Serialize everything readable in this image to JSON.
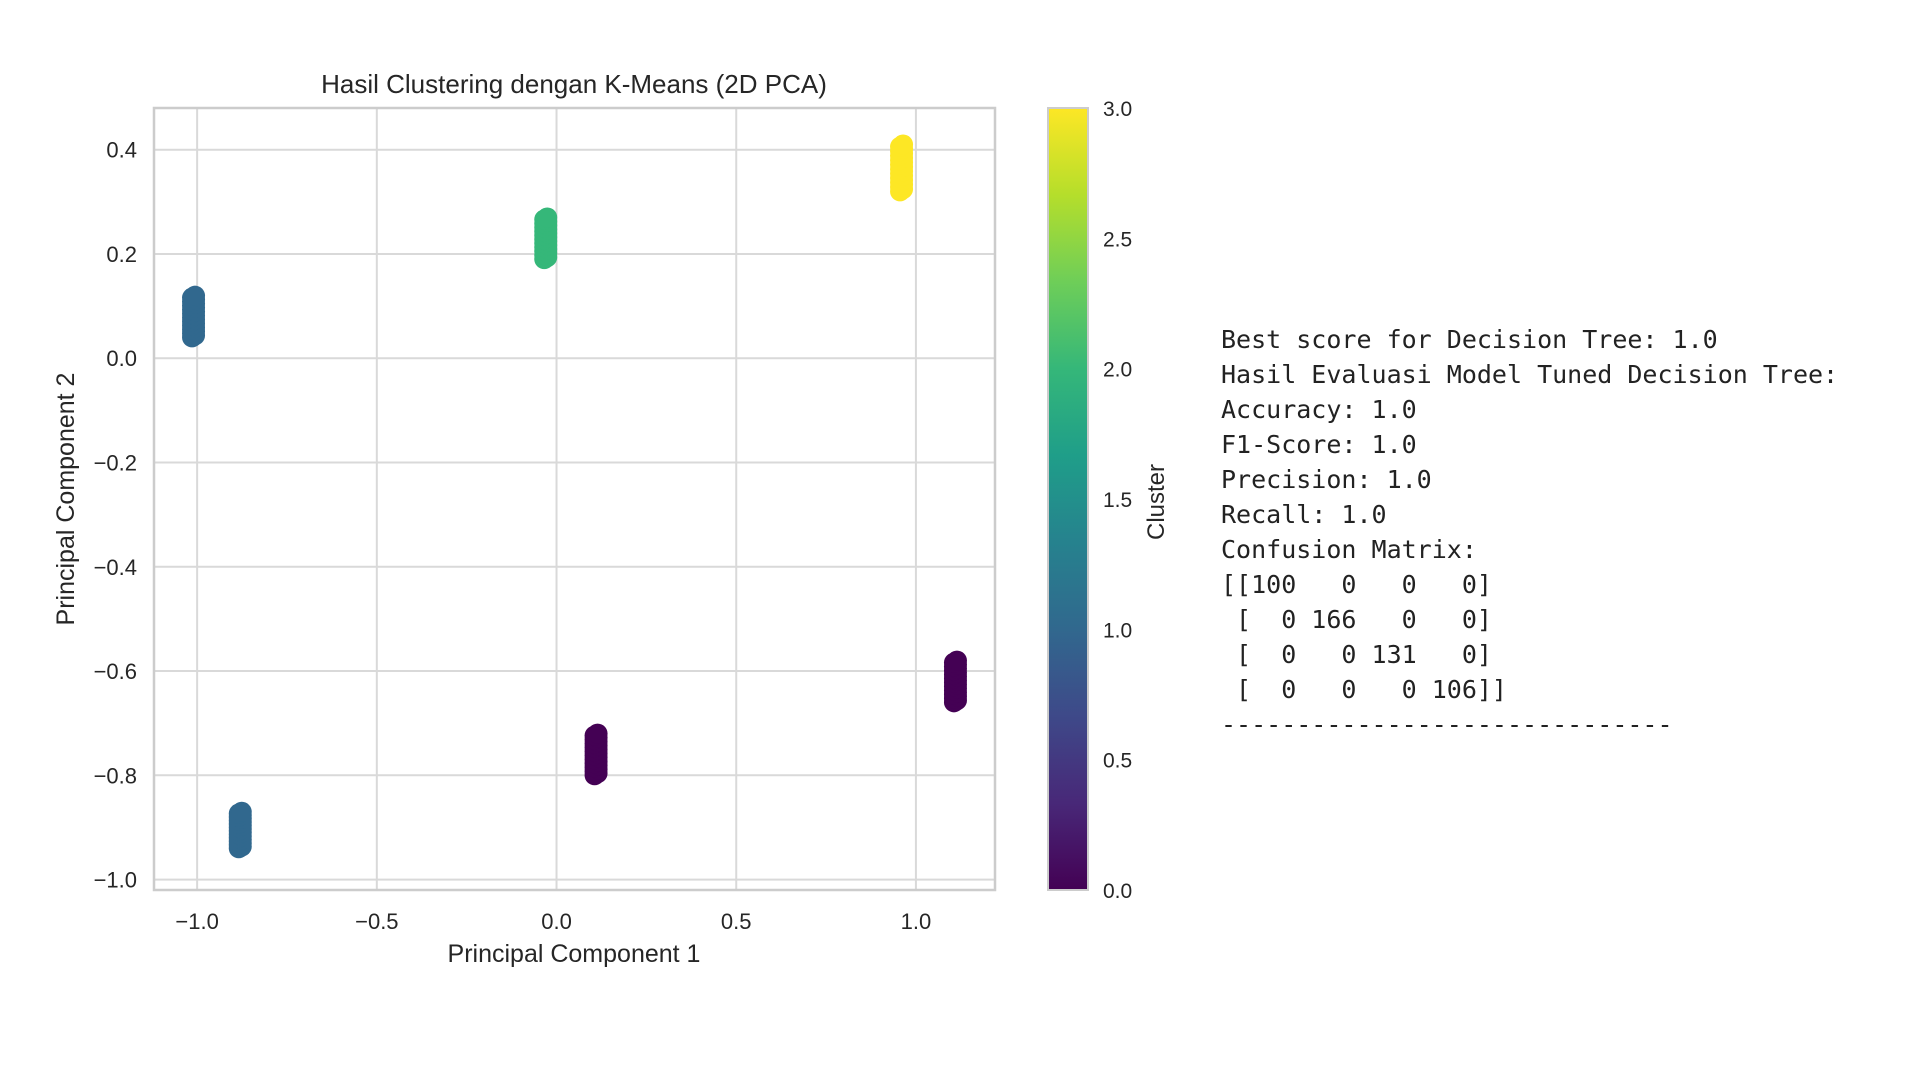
{
  "chart_data": {
    "type": "scatter",
    "title": "Hasil Clustering dengan K-Means (2D PCA)",
    "xlabel": "Principal Component 1",
    "ylabel": "Principal Component 2",
    "xlim": [
      -1.12,
      1.22
    ],
    "ylim": [
      -1.02,
      0.48
    ],
    "xticks": [
      -1.0,
      -0.5,
      0.0,
      0.5,
      1.0
    ],
    "xtick_labels": [
      "−1.0",
      "−0.5",
      "0.0",
      "0.5",
      "1.0"
    ],
    "yticks": [
      0.4,
      0.2,
      0.0,
      -0.2,
      -0.4,
      -0.6,
      -0.8,
      -1.0
    ],
    "ytick_labels": [
      "0.4",
      "0.2",
      "0.0",
      "−0.2",
      "−0.4",
      "−0.6",
      "−0.8",
      "−1.0"
    ],
    "grid": true,
    "colormap": "viridis",
    "colorbar": {
      "label": "Cluster",
      "range": [
        0.0,
        3.0
      ],
      "ticks": [
        3.0,
        2.5,
        2.0,
        1.5,
        1.0,
        0.5,
        0.0
      ],
      "tick_labels": [
        "3.0",
        "2.5",
        "2.0",
        "1.5",
        "1.0",
        "0.5",
        "0.0"
      ],
      "colors": [
        "#440154",
        "#482878",
        "#3e4989",
        "#31688e",
        "#26828e",
        "#1f9e89",
        "#35b779",
        "#6ece58",
        "#b5de2b",
        "#fde725"
      ]
    },
    "groups": [
      {
        "cluster": 3,
        "color": "#fde725",
        "x": 0.96,
        "y_min": 0.32,
        "y_max": 0.41
      },
      {
        "cluster": 2,
        "color": "#35b779",
        "x": -0.03,
        "y_min": 0.19,
        "y_max": 0.27
      },
      {
        "cluster": 1,
        "color": "#31688e",
        "x": -1.01,
        "y_min": 0.04,
        "y_max": 0.12
      },
      {
        "cluster": 1,
        "color": "#31688e",
        "x": -0.88,
        "y_min": -0.94,
        "y_max": -0.87
      },
      {
        "cluster": 0,
        "color": "#440154",
        "x": 0.11,
        "y_min": -0.8,
        "y_max": -0.72
      },
      {
        "cluster": 0,
        "color": "#440154",
        "x": 1.11,
        "y_min": -0.66,
        "y_max": -0.58
      }
    ]
  },
  "console": {
    "lines": [
      "Best score for Decision Tree: 1.0",
      "Hasil Evaluasi Model Tuned Decision Tree:",
      "Accuracy: 1.0",
      "F1-Score: 1.0",
      "Precision: 1.0",
      "Recall: 1.0",
      "Confusion Matrix:",
      "[[100   0   0   0]",
      " [  0 166   0   0]",
      " [  0   0 131   0]",
      " [  0   0   0 106]]",
      "------------------------------"
    ]
  }
}
